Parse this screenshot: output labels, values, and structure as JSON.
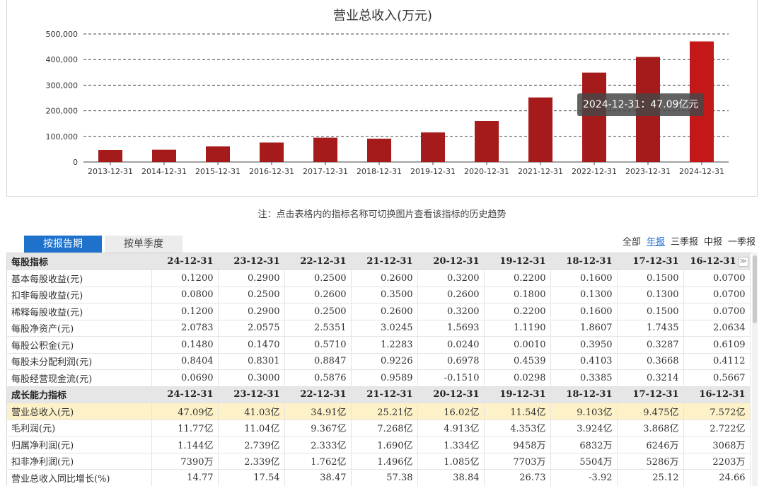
{
  "chart_data": {
    "type": "bar",
    "title": "营业总收入(万元)",
    "categories": [
      "2013-12-31",
      "2014-12-31",
      "2015-12-31",
      "2016-12-31",
      "2017-12-31",
      "2018-12-31",
      "2019-12-31",
      "2020-12-31",
      "2021-12-31",
      "2022-12-31",
      "2023-12-31",
      "2024-12-31"
    ],
    "values": [
      47000,
      48000,
      61000,
      76000,
      95000,
      91030,
      115400,
      160200,
      252100,
      349100,
      410300,
      470900
    ],
    "ylim": [
      0,
      500000
    ],
    "yticks": [
      0,
      100000,
      200000,
      300000,
      400000,
      500000
    ],
    "ytick_labels": [
      "0",
      "100,000",
      "200,000",
      "300,000",
      "400,000",
      "500,000"
    ],
    "xlabel": "",
    "ylabel": "",
    "grid": true,
    "highlight_index": 11,
    "bar_color": "#a51a1a",
    "highlight_color": "#c41818",
    "tooltip": "2024-12-31：47.09亿元"
  },
  "note": "注：点击表格内的指标名称可切换图片查看该指标的历史趋势",
  "tabs": {
    "active": "按报告期",
    "inactive": "按单季度"
  },
  "period_filter": {
    "all": "全部",
    "annual": "年报",
    "q3": "三季报",
    "mid": "中报",
    "q1": "一季报"
  },
  "more_button": "≫",
  "colors": {
    "accent": "#1e72cc",
    "highlight_row": "#fdf1c8",
    "section_row": "#e6e6e6"
  },
  "table": {
    "sections": [
      {
        "title": "每股指标",
        "headers": [
          "24-12-31",
          "23-12-31",
          "22-12-31",
          "21-12-31",
          "20-12-31",
          "19-12-31",
          "18-12-31",
          "17-12-31",
          "16-12-31"
        ],
        "rows": [
          {
            "label": "基本每股收益(元)",
            "values": [
              "0.1200",
              "0.2900",
              "0.2500",
              "0.2600",
              "0.3200",
              "0.2200",
              "0.1600",
              "0.1500",
              "0.0700"
            ]
          },
          {
            "label": "扣非每股收益(元)",
            "values": [
              "0.0800",
              "0.2500",
              "0.2600",
              "0.3500",
              "0.2600",
              "0.1800",
              "0.1300",
              "0.1300",
              "0.0700"
            ]
          },
          {
            "label": "稀释每股收益(元)",
            "values": [
              "0.1200",
              "0.2900",
              "0.2500",
              "0.2600",
              "0.3200",
              "0.2200",
              "0.1600",
              "0.1500",
              "0.0700"
            ]
          },
          {
            "label": "每股净资产(元)",
            "values": [
              "2.0783",
              "2.0575",
              "2.5351",
              "3.0245",
              "1.5693",
              "1.1190",
              "1.8607",
              "1.7435",
              "2.0634"
            ]
          },
          {
            "label": "每股公积金(元)",
            "values": [
              "0.1480",
              "0.1470",
              "0.5710",
              "1.2283",
              "0.0240",
              "0.0010",
              "0.3950",
              "0.3287",
              "0.6109"
            ]
          },
          {
            "label": "每股未分配利润(元)",
            "values": [
              "0.8404",
              "0.8301",
              "0.8847",
              "0.9226",
              "0.6978",
              "0.4539",
              "0.4103",
              "0.3668",
              "0.4112"
            ]
          },
          {
            "label": "每股经营现金流(元)",
            "values": [
              "0.0690",
              "0.3000",
              "0.5876",
              "0.9589",
              "-0.1510",
              "0.0298",
              "0.3385",
              "0.3214",
              "0.5667"
            ]
          }
        ]
      },
      {
        "title": "成长能力指标",
        "headers": [
          "24-12-31",
          "23-12-31",
          "22-12-31",
          "21-12-31",
          "20-12-31",
          "19-12-31",
          "18-12-31",
          "17-12-31",
          "16-12-31"
        ],
        "rows": [
          {
            "label": "营业总收入(元)",
            "highlight": true,
            "values": [
              "47.09亿",
              "41.03亿",
              "34.91亿",
              "25.21亿",
              "16.02亿",
              "11.54亿",
              "9.103亿",
              "9.475亿",
              "7.572亿"
            ]
          },
          {
            "label": "毛利润(元)",
            "values": [
              "11.77亿",
              "11.04亿",
              "9.367亿",
              "7.268亿",
              "4.913亿",
              "4.353亿",
              "3.924亿",
              "3.868亿",
              "2.722亿"
            ]
          },
          {
            "label": "归属净利润(元)",
            "values": [
              "1.144亿",
              "2.739亿",
              "2.333亿",
              "1.690亿",
              "1.334亿",
              "9458万",
              "6832万",
              "6246万",
              "3068万"
            ]
          },
          {
            "label": "扣非净利润(元)",
            "values": [
              "7390万",
              "2.339亿",
              "1.762亿",
              "1.496亿",
              "1.085亿",
              "7703万",
              "5504万",
              "5286万",
              "2203万"
            ]
          },
          {
            "label": "营业总收入同比增长(%)",
            "values": [
              "14.77",
              "17.54",
              "38.47",
              "57.38",
              "38.84",
              "26.73",
              "-3.92",
              "25.12",
              "24.66"
            ]
          }
        ]
      }
    ]
  }
}
